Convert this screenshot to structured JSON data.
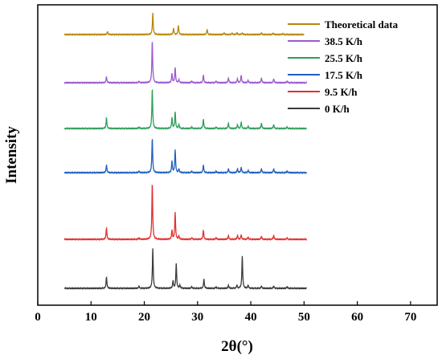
{
  "chart_data": {
    "type": "line",
    "xlabel": "2θ(°)",
    "ylabel": "Intensity",
    "xlim": [
      0,
      75
    ],
    "xticks": [
      0,
      10,
      20,
      30,
      40,
      50,
      60,
      70
    ],
    "yticks_shown": false,
    "grid": false,
    "legend_position": "top-right",
    "x_range_common": [
      5,
      50.5
    ],
    "series": [
      {
        "name": "Theoretical data",
        "color": "#b8860b",
        "x_range": [
          5,
          50
        ],
        "peaks": [
          [
            13.1,
            4
          ],
          [
            21.6,
            28
          ],
          [
            25.5,
            8
          ],
          [
            26.4,
            12
          ],
          [
            31.8,
            7
          ],
          [
            35.0,
            2
          ],
          [
            36.5,
            2
          ],
          [
            37.4,
            2.5
          ],
          [
            38.4,
            2
          ],
          [
            42.0,
            2
          ],
          [
            44.2,
            1.5
          ],
          [
            46.0,
            1
          ]
        ]
      },
      {
        "name": "38.5 K/h",
        "color": "#9b59d0",
        "x_range": [
          5,
          50.5
        ],
        "peaks": [
          [
            12.9,
            8
          ],
          [
            19.0,
            2
          ],
          [
            21.5,
            55
          ],
          [
            25.2,
            12
          ],
          [
            25.8,
            20
          ],
          [
            26.5,
            4
          ],
          [
            28.9,
            2
          ],
          [
            31.1,
            10
          ],
          [
            33.5,
            2
          ],
          [
            35.8,
            6
          ],
          [
            37.5,
            5
          ],
          [
            38.2,
            10
          ],
          [
            39.5,
            3
          ],
          [
            42.0,
            6
          ],
          [
            44.3,
            5
          ],
          [
            46.8,
            2
          ]
        ]
      },
      {
        "name": "25.5 K/h",
        "color": "#2e9e5b",
        "x_range": [
          5,
          50.5
        ],
        "peaks": [
          [
            12.9,
            14
          ],
          [
            19.0,
            2
          ],
          [
            21.5,
            52
          ],
          [
            25.2,
            14
          ],
          [
            25.8,
            22
          ],
          [
            26.5,
            5
          ],
          [
            28.9,
            2
          ],
          [
            31.1,
            12
          ],
          [
            33.5,
            2
          ],
          [
            35.8,
            7
          ],
          [
            37.5,
            5
          ],
          [
            38.2,
            8
          ],
          [
            39.5,
            3
          ],
          [
            42.0,
            7
          ],
          [
            44.3,
            5
          ],
          [
            46.8,
            2
          ]
        ]
      },
      {
        "name": "17.5 K/h",
        "color": "#1f5fbf",
        "x_range": [
          5,
          50.5
        ],
        "peaks": [
          [
            12.9,
            10
          ],
          [
            19.0,
            2
          ],
          [
            21.5,
            45
          ],
          [
            25.2,
            15
          ],
          [
            25.8,
            30
          ],
          [
            26.5,
            5
          ],
          [
            28.9,
            2
          ],
          [
            31.1,
            10
          ],
          [
            33.5,
            2
          ],
          [
            35.8,
            5
          ],
          [
            37.5,
            5
          ],
          [
            38.2,
            7
          ],
          [
            39.5,
            3
          ],
          [
            42.0,
            5
          ],
          [
            44.3,
            5
          ],
          [
            46.8,
            2
          ]
        ]
      },
      {
        "name": "9.5 K/h",
        "color": "#e03030",
        "x_range": [
          5,
          50.5
        ],
        "peaks": [
          [
            12.9,
            15
          ],
          [
            19.0,
            2
          ],
          [
            21.5,
            74
          ],
          [
            25.2,
            12
          ],
          [
            25.8,
            35
          ],
          [
            26.5,
            4
          ],
          [
            28.9,
            2
          ],
          [
            31.1,
            12
          ],
          [
            33.5,
            2
          ],
          [
            35.8,
            5
          ],
          [
            37.5,
            5
          ],
          [
            38.2,
            6
          ],
          [
            39.5,
            3
          ],
          [
            42.0,
            4
          ],
          [
            44.3,
            5
          ],
          [
            46.8,
            2
          ]
        ]
      },
      {
        "name": "0 K/h",
        "color": "#3a3a3a",
        "x_range": [
          5,
          50.5
        ],
        "peaks": [
          [
            12.9,
            15
          ],
          [
            19.0,
            3
          ],
          [
            21.6,
            52
          ],
          [
            25.4,
            10
          ],
          [
            26.0,
            32
          ],
          [
            26.7,
            4
          ],
          [
            28.9,
            2
          ],
          [
            31.2,
            12
          ],
          [
            33.5,
            2
          ],
          [
            35.8,
            4
          ],
          [
            37.4,
            4
          ],
          [
            38.4,
            42
          ],
          [
            39.5,
            4
          ],
          [
            42.0,
            3
          ],
          [
            44.3,
            3
          ],
          [
            46.8,
            2
          ]
        ]
      }
    ]
  }
}
